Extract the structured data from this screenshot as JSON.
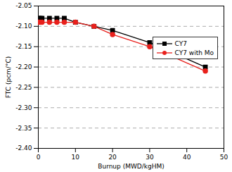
{
  "chart_data": {
    "type": "line",
    "x": [
      0,
      0.5,
      1,
      3,
      5,
      7,
      10,
      15,
      20,
      30,
      45
    ],
    "series": [
      {
        "name": "CY7",
        "color": "#000000",
        "marker": "square",
        "line_style": "solid",
        "values": [
          -2.08,
          -2.08,
          -2.08,
          -2.08,
          -2.08,
          -2.08,
          -2.09,
          -2.1,
          -2.11,
          -2.14,
          -2.2
        ]
      },
      {
        "name": "CY7 with Mo",
        "color": "#e8201c",
        "marker": "circle",
        "line_style": "solid",
        "values": [
          -2.09,
          -2.09,
          -2.09,
          -2.09,
          -2.09,
          -2.09,
          -2.09,
          -2.1,
          -2.12,
          -2.15,
          -2.21
        ]
      }
    ],
    "x_label": "Burnup (MWD/kgHM)",
    "y_label": "FTC (pcm/°C)",
    "xlim": [
      0,
      50
    ],
    "xticks": [
      0,
      10,
      20,
      30,
      40,
      50
    ],
    "ylim": [
      -2.4,
      -2.05
    ],
    "yticks": [
      -2.05,
      {
        "value": -2.1,
        "label": "-2.10"
      },
      -2.15,
      {
        "value": -2.2,
        "label": "-2.20"
      },
      -2.25,
      {
        "value": -2.3,
        "label": "-2.30"
      },
      -2.35,
      {
        "value": -2.4,
        "label": "-2.40"
      }
    ],
    "grid": true,
    "legend": "upper right"
  }
}
